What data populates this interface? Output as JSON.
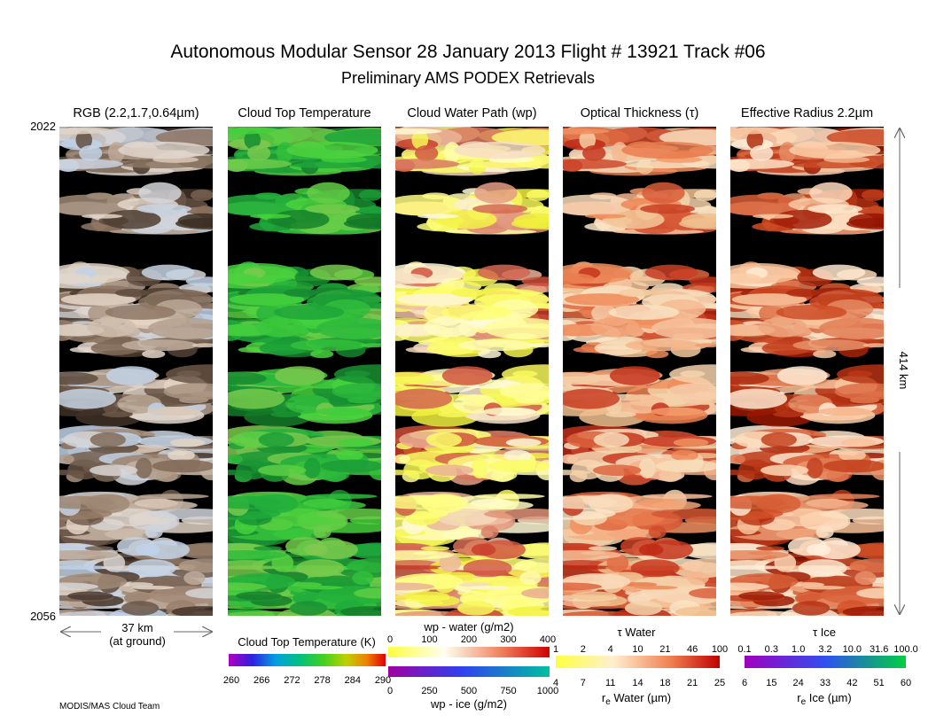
{
  "header": {
    "title": "Autonomous Modular Sensor  28 January 2013  Flight # 13921 Track #06",
    "subtitle": "Preliminary AMS PODEX Retrievals"
  },
  "panels": [
    {
      "title": "RGB (2.2,1.7,0.64µm)",
      "palette": "rgb"
    },
    {
      "title": "Cloud Top Temperature",
      "palette": "ctt"
    },
    {
      "title": "Cloud Water Path (wp)",
      "palette": "wp"
    },
    {
      "title": "Optical Thickness (τ)",
      "palette": "tau"
    },
    {
      "title": "Effective Radius 2.2µm",
      "palette": "re"
    }
  ],
  "time_start": "2022",
  "time_end": "2056",
  "width_scale": {
    "distance": "37 km",
    "note": "(at ground)"
  },
  "length_scale": "414 km",
  "colorbars": {
    "ctt": {
      "label": "Cloud Top Temperature (K)",
      "ticks": [
        "260",
        "266",
        "272",
        "278",
        "284",
        "290"
      ]
    },
    "wp_water": {
      "label": "wp - water (g/m2)",
      "ticks": [
        "0",
        "100",
        "200",
        "300",
        "400"
      ]
    },
    "wp_ice": {
      "label": "wp - ice (g/m2)",
      "ticks": [
        "0",
        "250",
        "500",
        "750",
        "1000"
      ]
    },
    "tau_water": {
      "label": "τ Water",
      "ticks": [
        "1",
        "2",
        "4",
        "10",
        "21",
        "46",
        "100"
      ]
    },
    "re_water": {
      "label": {
        "symbol": "r",
        "subscript": "e",
        "text": " Water (µm)"
      },
      "ticks": [
        "4",
        "7",
        "11",
        "14",
        "18",
        "21",
        "25"
      ]
    },
    "tau_ice": {
      "label": "τ Ice",
      "ticks": [
        "0.1",
        "0.3",
        "1.0",
        "3.2",
        "10.0",
        "31.6",
        "100.0"
      ]
    },
    "re_ice": {
      "label": {
        "symbol": "r",
        "subscript": "e",
        "text": " Ice (µm)"
      },
      "ticks": [
        "6",
        "15",
        "24",
        "33",
        "42",
        "51",
        "60"
      ]
    }
  },
  "credit": "MODIS/MAS Cloud Team"
}
